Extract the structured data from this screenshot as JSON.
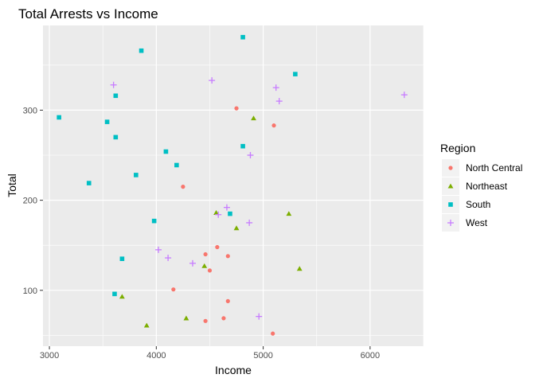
{
  "chart_data": {
    "type": "scatter",
    "title": "Total Arrests vs Income",
    "xlabel": "Income",
    "ylabel": "Total",
    "xlim": [
      2940,
      6500
    ],
    "ylim": [
      38,
      394
    ],
    "xticks": [
      3000,
      4000,
      5000,
      6000
    ],
    "yticks": [
      100,
      200,
      300
    ],
    "grid": true,
    "legend": {
      "title": "Region",
      "position": "right"
    },
    "series": [
      {
        "name": "North Central",
        "shape": "circle",
        "color": "#F8766D",
        "points": [
          {
            "x": 4750,
            "y": 302
          },
          {
            "x": 5100,
            "y": 283
          },
          {
            "x": 4250,
            "y": 215
          },
          {
            "x": 4570,
            "y": 148
          },
          {
            "x": 4460,
            "y": 140
          },
          {
            "x": 4670,
            "y": 138
          },
          {
            "x": 4500,
            "y": 122
          },
          {
            "x": 4160,
            "y": 101
          },
          {
            "x": 4670,
            "y": 88
          },
          {
            "x": 4630,
            "y": 69
          },
          {
            "x": 4460,
            "y": 66
          },
          {
            "x": 5090,
            "y": 52
          }
        ]
      },
      {
        "name": "Northeast",
        "shape": "triangle",
        "color": "#7CAE00",
        "points": [
          {
            "x": 4910,
            "y": 291
          },
          {
            "x": 4560,
            "y": 186
          },
          {
            "x": 5240,
            "y": 185
          },
          {
            "x": 4750,
            "y": 169
          },
          {
            "x": 4450,
            "y": 127
          },
          {
            "x": 5340,
            "y": 124
          },
          {
            "x": 3680,
            "y": 93
          },
          {
            "x": 4280,
            "y": 69
          },
          {
            "x": 3910,
            "y": 61
          }
        ]
      },
      {
        "name": "South",
        "shape": "square",
        "color": "#00BFC4",
        "points": [
          {
            "x": 4810,
            "y": 381
          },
          {
            "x": 3860,
            "y": 366
          },
          {
            "x": 5300,
            "y": 340
          },
          {
            "x": 3620,
            "y": 316
          },
          {
            "x": 3090,
            "y": 292
          },
          {
            "x": 3540,
            "y": 287
          },
          {
            "x": 3620,
            "y": 270
          },
          {
            "x": 4810,
            "y": 260
          },
          {
            "x": 4090,
            "y": 254
          },
          {
            "x": 4190,
            "y": 239
          },
          {
            "x": 3810,
            "y": 228
          },
          {
            "x": 3370,
            "y": 219
          },
          {
            "x": 4690,
            "y": 185
          },
          {
            "x": 3980,
            "y": 177
          },
          {
            "x": 3680,
            "y": 135
          },
          {
            "x": 3610,
            "y": 96
          }
        ]
      },
      {
        "name": "West",
        "shape": "cross",
        "color": "#C77CFF",
        "points": [
          {
            "x": 4520,
            "y": 333
          },
          {
            "x": 3600,
            "y": 328
          },
          {
            "x": 5120,
            "y": 325
          },
          {
            "x": 6320,
            "y": 317
          },
          {
            "x": 5150,
            "y": 310
          },
          {
            "x": 4880,
            "y": 250
          },
          {
            "x": 4660,
            "y": 192
          },
          {
            "x": 4580,
            "y": 184
          },
          {
            "x": 4870,
            "y": 175
          },
          {
            "x": 4020,
            "y": 145
          },
          {
            "x": 4110,
            "y": 136
          },
          {
            "x": 4340,
            "y": 130
          },
          {
            "x": 4960,
            "y": 71
          }
        ]
      }
    ]
  }
}
